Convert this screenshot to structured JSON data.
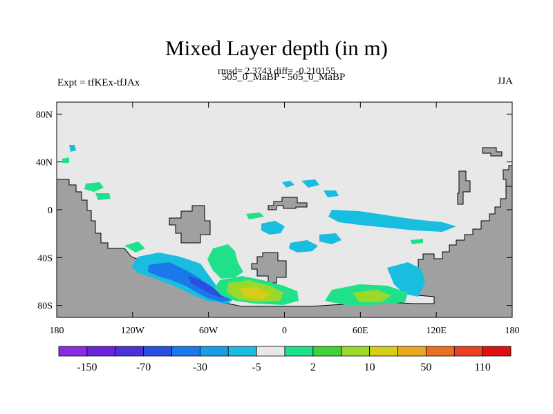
{
  "chart_data": {
    "type": "heatmap",
    "title": "Mixed Layer depth (in m)",
    "subtitle": "rmsd= 2.3743 diff= -0.210155",
    "left_label": "Expt = tfKEx-tfJAx",
    "center_label": "505_0_MaBP - 505_0_MaBP",
    "right_label": "JJA",
    "x_ticks": [
      "180",
      "120W",
      "60W",
      "0",
      "60E",
      "120E",
      "180"
    ],
    "y_ticks": [
      "80N",
      "40N",
      "0",
      "40S",
      "80S"
    ],
    "xlim": [
      -180,
      180
    ],
    "ylim": [
      -90,
      90
    ],
    "land_color": "#a0a0a0",
    "ocean_color": "#e8e8e8",
    "colorbar": {
      "colors": [
        "#8a2be2",
        "#6a22dd",
        "#4b32d6",
        "#2a4fe0",
        "#1a78e8",
        "#179ee6",
        "#18bde0",
        "#e8e8e8",
        "#20e08a",
        "#3fd23a",
        "#9ad82a",
        "#d6cc1a",
        "#e8a820",
        "#e87020",
        "#e84020",
        "#e01010"
      ],
      "labels": [
        "-150",
        "-70",
        "-30",
        "-5",
        "2",
        "10",
        "50",
        "110"
      ]
    }
  }
}
